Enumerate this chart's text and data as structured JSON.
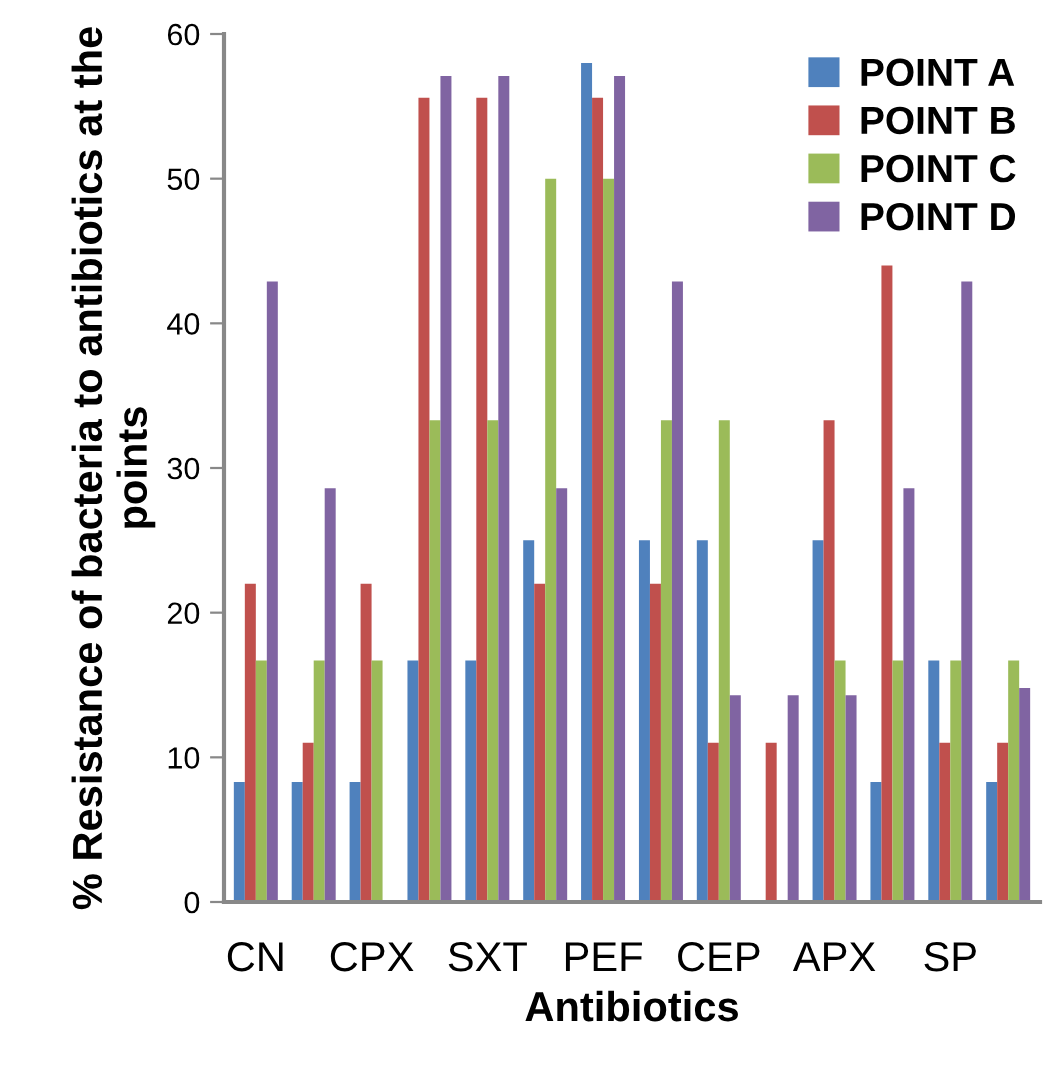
{
  "chart_data": {
    "type": "bar",
    "xlabel": "Antibiotics",
    "ylabel": "% Resistance of bacteria to antibiotics at the points",
    "categories": [
      "CN",
      null,
      "CPX",
      null,
      "SXT",
      null,
      "PEF",
      null,
      "CEP",
      null,
      "APX",
      null,
      "SP",
      null
    ],
    "series": [
      {
        "name": "POINT A",
        "color": "#4f81bd",
        "values": [
          8.3,
          8.3,
          8.3,
          16.7,
          16.7,
          25,
          58,
          25,
          25,
          0,
          25,
          8.3,
          16.7,
          8.3
        ]
      },
      {
        "name": "POINT B",
        "color": "#c0504d",
        "values": [
          22,
          11,
          22,
          55.6,
          55.6,
          22,
          55.6,
          22,
          11,
          11,
          33.3,
          44,
          11,
          11
        ]
      },
      {
        "name": "POINT C",
        "color": "#9bbb59",
        "values": [
          16.7,
          16.7,
          16.7,
          33.3,
          33.3,
          50,
          50,
          33.3,
          33.3,
          0,
          16.7,
          16.7,
          16.7,
          16.7
        ]
      },
      {
        "name": "POINT D",
        "color": "#8064a2",
        "values": [
          42.9,
          28.6,
          0,
          57.1,
          57.1,
          28.6,
          57.1,
          42.9,
          14.3,
          14.3,
          14.3,
          28.6,
          42.9,
          14.8
        ]
      }
    ],
    "ylim": [
      0,
      60
    ],
    "yticks": [
      0,
      10,
      20,
      30,
      40,
      50,
      60
    ],
    "grid": false,
    "legend": "top right"
  }
}
